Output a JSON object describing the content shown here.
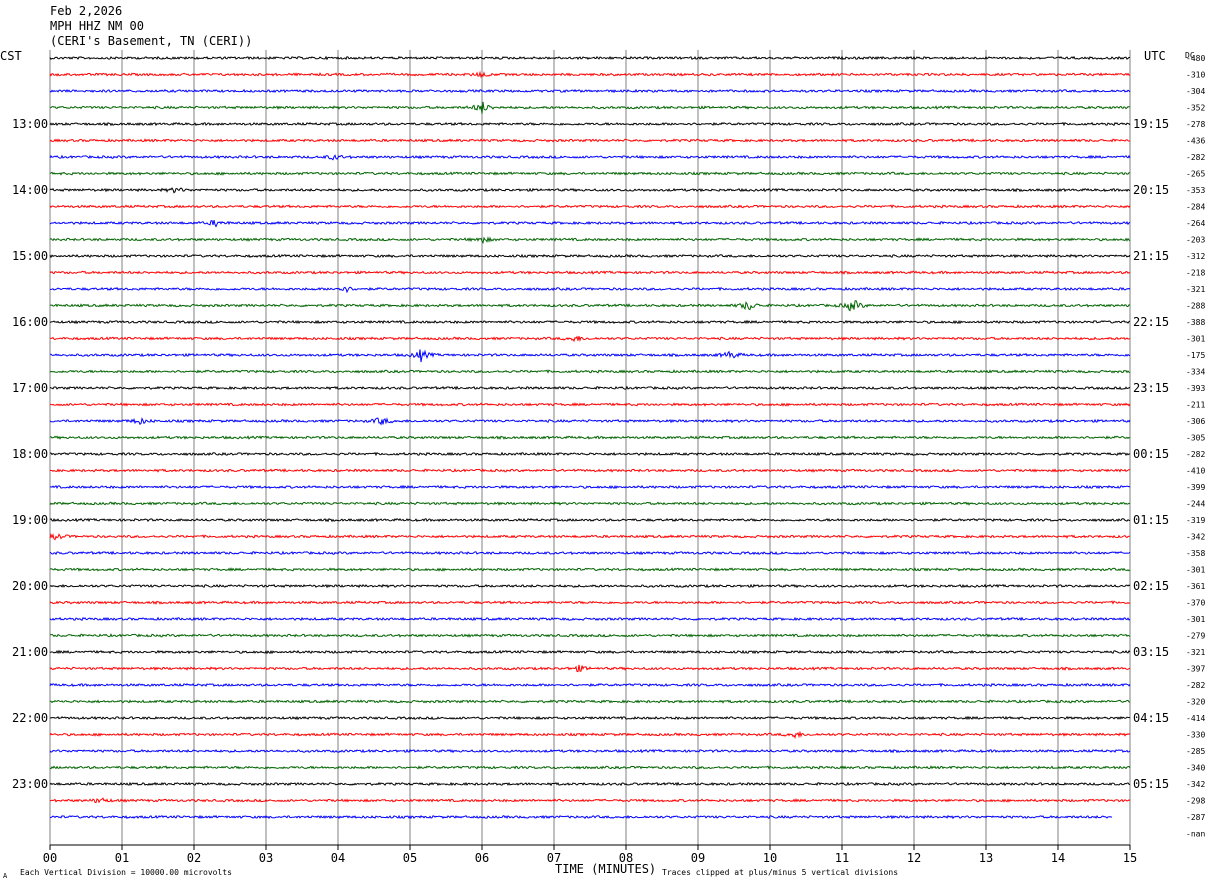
{
  "header": {
    "date": "Feb 2,2026",
    "station": "MPH HHZ NM 00",
    "location": "(CERI's Basement, TN (CERI))"
  },
  "axis": {
    "left_zone": "CST",
    "right_zone": "UTC",
    "dc_label": "DC",
    "xlabel": "TIME (MINUTES)",
    "xticks": [
      "00",
      "01",
      "02",
      "03",
      "04",
      "05",
      "06",
      "07",
      "08",
      "09",
      "10",
      "11",
      "12",
      "13",
      "14",
      "15"
    ]
  },
  "footer": {
    "scale_note": "Each Vertical Division = 10000.00 microvolts",
    "clip_note": "Traces clipped at plus/minus 5 vertical divisions",
    "corner_mark": "A"
  },
  "colors": {
    "black": "#000000",
    "red": "#ff0000",
    "blue": "#0000ff",
    "green": "#006400",
    "grid": "#808080"
  },
  "chart_data": {
    "type": "line",
    "title": "MPH HHZ NM 00",
    "xlabel": "TIME (MINUTES)",
    "xlim": [
      0,
      15
    ],
    "trace_minutes": 15,
    "color_cycle": [
      "black",
      "red",
      "blue",
      "green"
    ],
    "traces_total": 47,
    "cst_labels": [
      "13:00",
      "14:00",
      "15:00",
      "16:00",
      "17:00",
      "18:00",
      "19:00",
      "20:00",
      "21:00",
      "22:00",
      "23:00"
    ],
    "utc_labels": [
      "19:15",
      "20:15",
      "21:15",
      "22:15",
      "23:15",
      "00:15",
      "01:15",
      "02:15",
      "03:15",
      "04:15",
      "05:15"
    ],
    "dc_offsets": [
      "-480",
      "-310",
      "-304",
      "-352",
      "-278",
      "-436",
      "-282",
      "-265",
      "-353",
      "-284",
      "-264",
      "-203",
      "-312",
      "-218",
      "-321",
      "-288",
      "-388",
      "-301",
      "-175",
      "-334",
      "-393",
      "-211",
      "-306",
      "-305",
      "-282",
      "-410",
      "-399",
      "-244",
      "-319",
      "-342",
      "-358",
      "-301",
      "-361",
      "-370",
      "-301",
      "-279",
      "-321",
      "-397",
      "-282",
      "-320",
      "-414",
      "-330",
      "-285",
      "-340",
      "-342",
      "-298",
      "-287",
      "-nan"
    ],
    "events": [
      {
        "trace": 1,
        "minute": 6.0,
        "amp": 2.5
      },
      {
        "trace": 3,
        "minute": 6.0,
        "amp": 6
      },
      {
        "trace": 6,
        "minute": 3.95,
        "amp": 2.5
      },
      {
        "trace": 8,
        "minute": 1.75,
        "amp": 2.5
      },
      {
        "trace": 10,
        "minute": 2.3,
        "amp": 3
      },
      {
        "trace": 11,
        "minute": 6.0,
        "amp": 3
      },
      {
        "trace": 14,
        "minute": 4.1,
        "amp": 3
      },
      {
        "trace": 15,
        "minute": 9.7,
        "amp": 5
      },
      {
        "trace": 15,
        "minute": 11.15,
        "amp": 7
      },
      {
        "trace": 17,
        "minute": 7.3,
        "amp": 3
      },
      {
        "trace": 18,
        "minute": 5.15,
        "amp": 6
      },
      {
        "trace": 18,
        "minute": 9.45,
        "amp": 4
      },
      {
        "trace": 22,
        "minute": 4.6,
        "amp": 4
      },
      {
        "trace": 22,
        "minute": 1.25,
        "amp": 3
      },
      {
        "trace": 29,
        "minute": 0.1,
        "amp": 3
      },
      {
        "trace": 37,
        "minute": 7.35,
        "amp": 3
      },
      {
        "trace": 41,
        "minute": 10.35,
        "amp": 3
      },
      {
        "trace": 45,
        "minute": 0.7,
        "amp": 3
      }
    ]
  }
}
